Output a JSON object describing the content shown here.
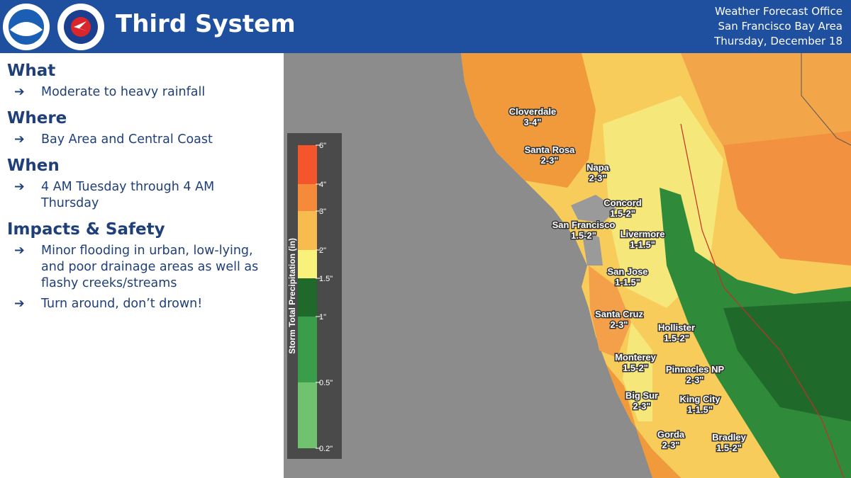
{
  "header": {
    "title": "Third System",
    "office": [
      "Weather Forecast Office",
      "San Francisco Bay Area",
      "Thursday, December 18"
    ]
  },
  "sections": [
    {
      "heading": "What",
      "bullets": [
        "Moderate to heavy rainfall"
      ]
    },
    {
      "heading": "Where",
      "bullets": [
        "Bay Area and Central Coast"
      ]
    },
    {
      "heading": "When",
      "bullets": [
        "4 AM Tuesday through 4 AM Thursday"
      ]
    },
    {
      "heading": "Impacts & Safety",
      "bullets": [
        "Minor flooding in urban, low-lying, and poor drainage areas as well as flashy creeks/streams",
        "Turn around, don’t drown!"
      ]
    }
  ],
  "map": {
    "legend": {
      "title": "Storm Total Precipitation (in)",
      "ticks": [
        "6\"",
        "4\"",
        "3\"",
        "2\"",
        "1.5\"",
        "1\"",
        "0.5\"",
        "0.2\""
      ]
    },
    "cities": [
      {
        "name": "Cloverdale",
        "amount": "3-4\""
      },
      {
        "name": "Santa Rosa",
        "amount": "2-3\""
      },
      {
        "name": "Napa",
        "amount": "2-3\""
      },
      {
        "name": "Concord",
        "amount": "1.5-2\""
      },
      {
        "name": "San Francisco",
        "amount": "1.5-2\""
      },
      {
        "name": "Livermore",
        "amount": "1-1.5\""
      },
      {
        "name": "San Jose",
        "amount": "1-1.5\""
      },
      {
        "name": "Santa Cruz",
        "amount": "2-3\""
      },
      {
        "name": "Hollister",
        "amount": "1.5-2\""
      },
      {
        "name": "Monterey",
        "amount": "1.5-2\""
      },
      {
        "name": "Pinnacles NP",
        "amount": "2-3\""
      },
      {
        "name": "Big Sur",
        "amount": "2-3\""
      },
      {
        "name": "King City",
        "amount": "1-1.5\""
      },
      {
        "name": "Gorda",
        "amount": "2-3\""
      },
      {
        "name": "Bradley",
        "amount": "1.5-2\""
      }
    ]
  }
}
